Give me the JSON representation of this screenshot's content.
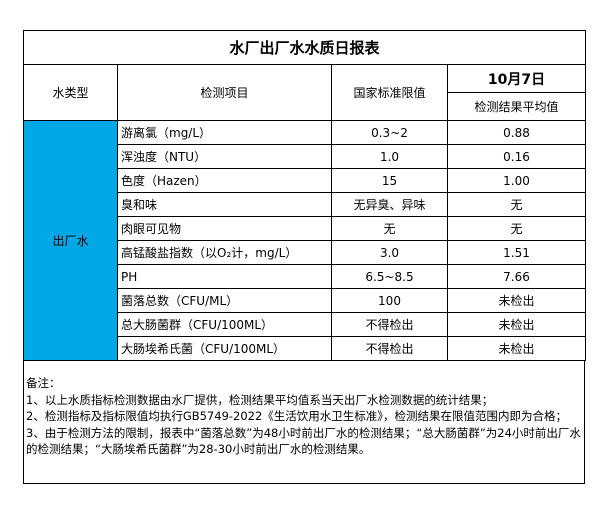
{
  "title": "水厂出厂水水质日报表",
  "headers": {
    "water_type": "水类型",
    "item": "检测项目",
    "limit": "国家标准限值",
    "date": "10月7日",
    "result": "检测结果平均值"
  },
  "water_type_value": "出厂水",
  "rows": [
    {
      "item": "游离氯（mg/L）",
      "limit": "0.3~2",
      "result": "0.88"
    },
    {
      "item": "浑浊度（NTU）",
      "limit": "1.0",
      "result": "0.16"
    },
    {
      "item": "色度（Hazen）",
      "limit": "15",
      "result": "1.00"
    },
    {
      "item": "臭和味",
      "limit": "无异臭、异味",
      "result": "无"
    },
    {
      "item": "肉眼可见物",
      "limit": "无",
      "result": "无"
    },
    {
      "item": "高锰酸盐指数（以O₂计，mg/L）",
      "limit": "3.0",
      "result": "1.51"
    },
    {
      "item": "PH",
      "limit": "6.5~8.5",
      "result": "7.66"
    },
    {
      "item": "菌落总数（CFU/ML）",
      "limit": "100",
      "result": "未检出"
    },
    {
      "item": "总大肠菌群（CFU/100ML）",
      "limit": "不得检出",
      "result": "未检出"
    },
    {
      "item": "大肠埃希氏菌（CFU/100ML）",
      "limit": "不得检出",
      "result": "未检出"
    }
  ],
  "notes": [
    "备注：",
    "1、以上水质指标检测数据由水厂提供，检测结果平均值系当天出厂水检测数据的统计结果；",
    "2、检测指标及指标限值均执行GB5749-2022《生活饮用水卫生标准》，检测结果在限值范围内即为合格；",
    "3、由于检测方法的限制，报表中“菌落总数”为48小时前出厂水的检测结果；“总大肠菌群”为24小时前出厂水的检测结果；“大肠埃希氏菌群”为28-30小时前出厂水的检测结果。"
  ],
  "colors": {
    "water_type_cell": "#00a9e6"
  }
}
